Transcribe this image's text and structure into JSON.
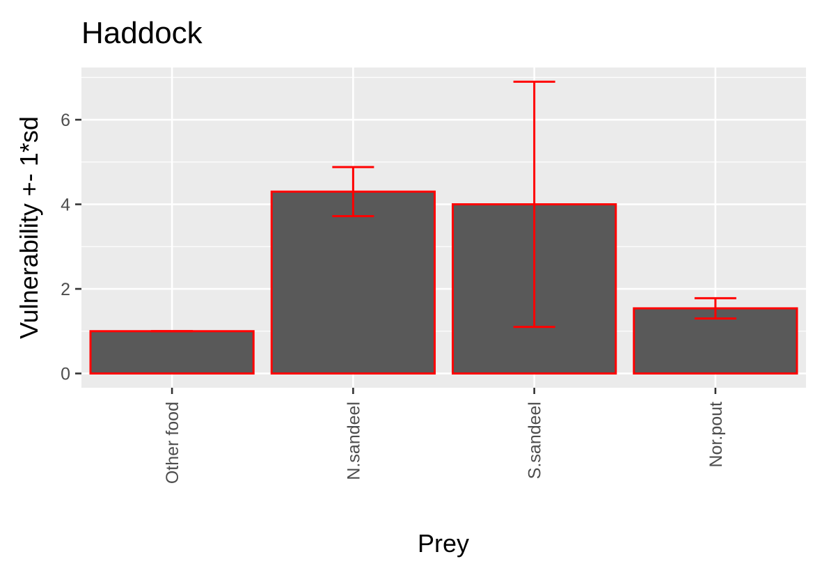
{
  "chart_data": {
    "type": "bar",
    "title": "Haddock",
    "xlabel": "Prey",
    "ylabel": "Vulnerability +- 1*sd",
    "categories": [
      "Other food",
      "N.sandeel",
      "S.sandeel",
      "Nor.pout"
    ],
    "values": [
      1.0,
      4.3,
      4.0,
      1.54
    ],
    "error_lower": [
      1.0,
      3.72,
      1.1,
      1.3
    ],
    "error_upper": [
      1.0,
      4.88,
      6.9,
      1.78
    ],
    "ylim": [
      -0.35,
      7.2
    ],
    "yticks": [
      0,
      2,
      4,
      6
    ],
    "ytick_labels": [
      "0",
      "2",
      "4",
      "6"
    ],
    "grid": true,
    "legend": "none",
    "colors": {
      "panel_background": "#ebebeb",
      "grid_major": "#ffffff",
      "bar_fill": "#595959",
      "bar_outline": "#ff0000",
      "error_bar": "#ff0000",
      "tick": "#333333"
    }
  }
}
